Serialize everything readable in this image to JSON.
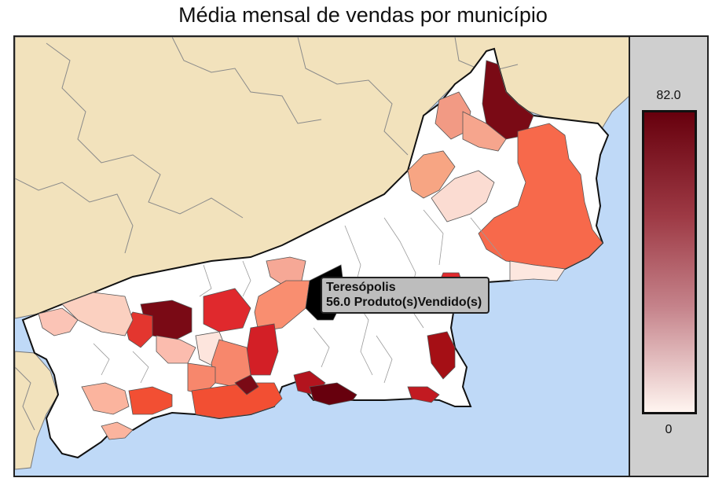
{
  "title": "Média mensal de vendas por município",
  "legend": {
    "max_label": "82.0",
    "min_label": "0",
    "min_value": 0,
    "max_value": 82.0,
    "colors": [
      "#fff5f0",
      "#c5838b",
      "#9e3a45",
      "#67000d"
    ]
  },
  "tooltip": {
    "municipality": "Teresópolis",
    "value_text": "56.0 Produto(s)Vendido(s)",
    "value": 56.0
  },
  "map_colors": {
    "ocean": "#bfd9f7",
    "neighbor_states": "#f2e2bc",
    "no_data": "#ffffff",
    "highlight": "#000000"
  }
}
